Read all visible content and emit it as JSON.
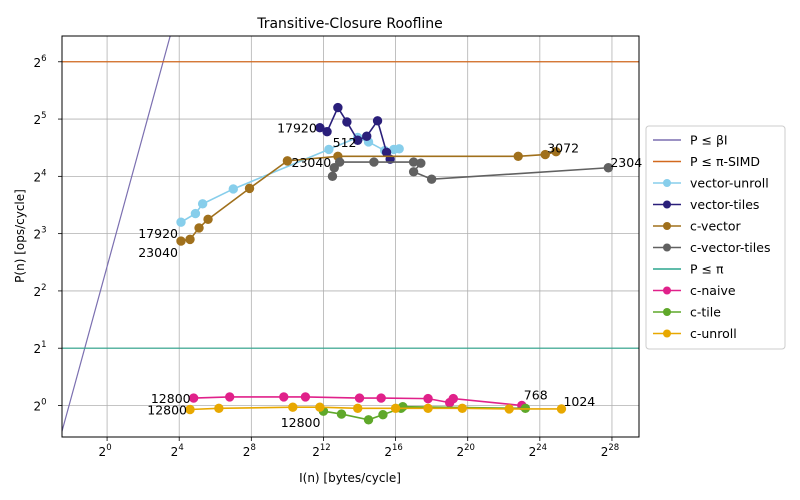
{
  "chart_data": {
    "type": "line",
    "title": "Transitive-Closure Roofline",
    "xlabel": "I(n) [bytes/cycle]",
    "ylabel": "P(n) [ops/cycle]",
    "xscale": "log2",
    "yscale": "log2",
    "xlim_log2": [
      -2.5,
      29.5
    ],
    "ylim_log2": [
      -0.55,
      6.45
    ],
    "x_ticks": [
      {
        "base": "2",
        "exp": "0",
        "log2": 0
      },
      {
        "base": "2",
        "exp": "4",
        "log2": 4
      },
      {
        "base": "2",
        "exp": "8",
        "log2": 8
      },
      {
        "base": "2",
        "exp": "12",
        "log2": 12
      },
      {
        "base": "2",
        "exp": "16",
        "log2": 16
      },
      {
        "base": "2",
        "exp": "20",
        "log2": 20
      },
      {
        "base": "2",
        "exp": "24",
        "log2": 24
      },
      {
        "base": "2",
        "exp": "28",
        "log2": 28
      }
    ],
    "y_ticks": [
      {
        "base": "2",
        "exp": "0",
        "log2": 0
      },
      {
        "base": "2",
        "exp": "1",
        "log2": 1
      },
      {
        "base": "2",
        "exp": "2",
        "log2": 2
      },
      {
        "base": "2",
        "exp": "3",
        "log2": 3
      },
      {
        "base": "2",
        "exp": "4",
        "log2": 4
      },
      {
        "base": "2",
        "exp": "5",
        "log2": 5
      },
      {
        "base": "2",
        "exp": "6",
        "log2": 6
      }
    ],
    "grid": true,
    "legend_placement": "center-right-outside",
    "roofs": [
      {
        "name": "P ≤ βI",
        "kind": "diagonal",
        "color": "#7b6fb0",
        "points_log2": [
          [
            -2.5,
            -0.45
          ],
          [
            3.5,
            6.45
          ]
        ]
      },
      {
        "name": "P ≤ π-SIMD",
        "kind": "horizontal",
        "color": "#d2691e",
        "y_log2": 6
      },
      {
        "name": "P ≤ π",
        "kind": "horizontal",
        "color": "#2ca58d",
        "y_log2": 1
      }
    ],
    "series": [
      {
        "name": "vector-unroll",
        "color": "#87ceeb",
        "points_log2": [
          [
            4.1,
            3.2
          ],
          [
            4.9,
            3.35
          ],
          [
            5.3,
            3.52
          ],
          [
            7.0,
            3.78
          ],
          [
            12.3,
            4.47
          ],
          [
            13.9,
            4.68
          ],
          [
            14.5,
            4.6
          ],
          [
            15.4,
            4.45
          ],
          [
            15.9,
            4.47
          ],
          [
            16.2,
            4.48
          ]
        ]
      },
      {
        "name": "vector-tiles",
        "color": "#2a1f7a",
        "points_log2": [
          [
            11.8,
            4.85
          ],
          [
            12.2,
            4.78
          ],
          [
            12.8,
            5.2
          ],
          [
            13.3,
            4.95
          ],
          [
            13.9,
            4.63
          ],
          [
            14.4,
            4.7
          ],
          [
            15.0,
            4.97
          ],
          [
            15.5,
            4.42
          ],
          [
            15.7,
            4.3
          ]
        ]
      },
      {
        "name": "c-vector",
        "color": "#a0701c",
        "points_log2": [
          [
            4.1,
            2.87
          ],
          [
            4.6,
            2.9
          ],
          [
            5.1,
            3.1
          ],
          [
            5.6,
            3.25
          ],
          [
            7.9,
            3.79
          ],
          [
            10.0,
            4.27
          ],
          [
            12.8,
            4.35
          ],
          [
            22.8,
            4.35
          ],
          [
            24.3,
            4.38
          ],
          [
            24.9,
            4.43
          ]
        ]
      },
      {
        "name": "c-vector-tiles",
        "color": "#616161",
        "points_log2": [
          [
            12.5,
            4.0
          ],
          [
            12.6,
            4.15
          ],
          [
            12.9,
            4.25
          ],
          [
            14.8,
            4.25
          ],
          [
            17.0,
            4.25
          ],
          [
            17.4,
            4.23
          ],
          [
            17.0,
            4.08
          ],
          [
            18.0,
            3.95
          ],
          [
            27.8,
            4.15
          ]
        ]
      },
      {
        "name": "c-naive",
        "color": "#e0218a",
        "points_log2": [
          [
            4.8,
            0.13
          ],
          [
            6.8,
            0.15
          ],
          [
            9.8,
            0.15
          ],
          [
            11.0,
            0.15
          ],
          [
            14.0,
            0.13
          ],
          [
            15.2,
            0.13
          ],
          [
            17.8,
            0.12
          ],
          [
            19.0,
            0.05
          ],
          [
            19.2,
            0.12
          ],
          [
            23.0,
            0.0
          ]
        ]
      },
      {
        "name": "c-tile",
        "color": "#5fa82a",
        "points_log2": [
          [
            12.0,
            -0.1
          ],
          [
            13.0,
            -0.15
          ],
          [
            14.5,
            -0.25
          ],
          [
            15.3,
            -0.16
          ],
          [
            16.3,
            -0.05
          ],
          [
            16.4,
            -0.02
          ],
          [
            23.2,
            -0.05
          ]
        ]
      },
      {
        "name": "c-unroll",
        "color": "#e8a800",
        "points_log2": [
          [
            4.6,
            -0.07
          ],
          [
            6.2,
            -0.05
          ],
          [
            10.3,
            -0.03
          ],
          [
            11.8,
            -0.03
          ],
          [
            13.9,
            -0.05
          ],
          [
            16.0,
            -0.05
          ],
          [
            17.8,
            -0.05
          ],
          [
            19.7,
            -0.05
          ],
          [
            22.3,
            -0.06
          ],
          [
            25.2,
            -0.06
          ]
        ]
      }
    ],
    "legend": [
      {
        "label": "P ≤ βI",
        "color": "#7b6fb0",
        "marker": false
      },
      {
        "label": "P ≤ π-SIMD",
        "color": "#d2691e",
        "marker": false
      },
      {
        "label": "vector-unroll",
        "color": "#87ceeb",
        "marker": true
      },
      {
        "label": "vector-tiles",
        "color": "#2a1f7a",
        "marker": true
      },
      {
        "label": "c-vector",
        "color": "#a0701c",
        "marker": true
      },
      {
        "label": "c-vector-tiles",
        "color": "#616161",
        "marker": true
      },
      {
        "label": "P ≤ π",
        "color": "#2ca58d",
        "marker": false
      },
      {
        "label": "c-naive",
        "color": "#e0218a",
        "marker": true
      },
      {
        "label": "c-tile",
        "color": "#5fa82a",
        "marker": true
      },
      {
        "label": "c-unroll",
        "color": "#e8a800",
        "marker": true
      }
    ],
    "annotations": [
      {
        "text": "17920",
        "x_log2": 11.8,
        "y_log2": 4.85,
        "anchor": "end"
      },
      {
        "text": "512",
        "x_log2": 12.4,
        "y_log2": 4.6,
        "anchor": "start"
      },
      {
        "text": "23040",
        "x_log2": 12.6,
        "y_log2": 4.25,
        "anchor": "end"
      },
      {
        "text": "17920",
        "x_log2": 4.1,
        "y_log2": 3.2,
        "anchor": "end-below"
      },
      {
        "text": "23040",
        "x_log2": 4.1,
        "y_log2": 2.87,
        "anchor": "end-below"
      },
      {
        "text": "3072",
        "x_log2": 24.3,
        "y_log2": 4.5,
        "anchor": "start"
      },
      {
        "text": "2304",
        "x_log2": 27.8,
        "y_log2": 4.25,
        "anchor": "start"
      },
      {
        "text": "12800",
        "x_log2": 4.8,
        "y_log2": 0.13,
        "anchor": "end"
      },
      {
        "text": "12800",
        "x_log2": 4.6,
        "y_log2": -0.07,
        "anchor": "end"
      },
      {
        "text": "12800",
        "x_log2": 12.0,
        "y_log2": -0.1,
        "anchor": "end-below"
      },
      {
        "text": "768",
        "x_log2": 23.0,
        "y_log2": 0.05,
        "anchor": "start-above"
      },
      {
        "text": "1024",
        "x_log2": 25.2,
        "y_log2": -0.06,
        "anchor": "start-above"
      }
    ]
  }
}
